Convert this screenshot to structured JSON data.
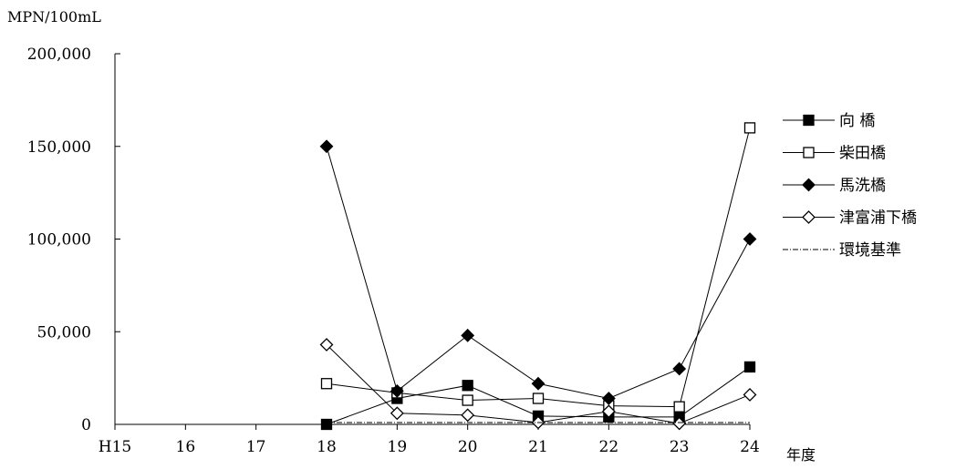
{
  "chart_data": {
    "type": "line",
    "ylabel": "MPN/100mL",
    "xlabel": "年度",
    "categories": [
      "H15",
      "16",
      "17",
      "18",
      "19",
      "20",
      "21",
      "22",
      "23",
      "24"
    ],
    "ylim": [
      0,
      200000
    ],
    "yticks": [
      0,
      50000,
      100000,
      150000,
      200000
    ],
    "ytick_labels": [
      "0",
      "50,000",
      "100,000",
      "150,000",
      "200,000"
    ],
    "legend_position": "right",
    "grid": false,
    "series": [
      {
        "name": "向 橋",
        "marker": "square-filled",
        "values": [
          null,
          null,
          null,
          0,
          14000,
          21000,
          4500,
          4000,
          4000,
          31000
        ]
      },
      {
        "name": "柴田橋",
        "marker": "square-open",
        "values": [
          null,
          null,
          null,
          22000,
          17000,
          13000,
          14000,
          10000,
          9500,
          160000
        ]
      },
      {
        "name": "馬洗橋",
        "marker": "diamond-filled",
        "values": [
          null,
          null,
          null,
          150000,
          18000,
          48000,
          22000,
          14000,
          30000,
          100000
        ]
      },
      {
        "name": "津富浦下橋",
        "marker": "diamond-open",
        "values": [
          null,
          null,
          null,
          43000,
          6000,
          5000,
          1000,
          7000,
          500,
          16000
        ]
      },
      {
        "name": "環境基準",
        "marker": "none",
        "line_style": "dash-dot",
        "values": [
          null,
          null,
          null,
          1000,
          1000,
          1000,
          1000,
          1000,
          1000,
          1000
        ]
      }
    ]
  }
}
